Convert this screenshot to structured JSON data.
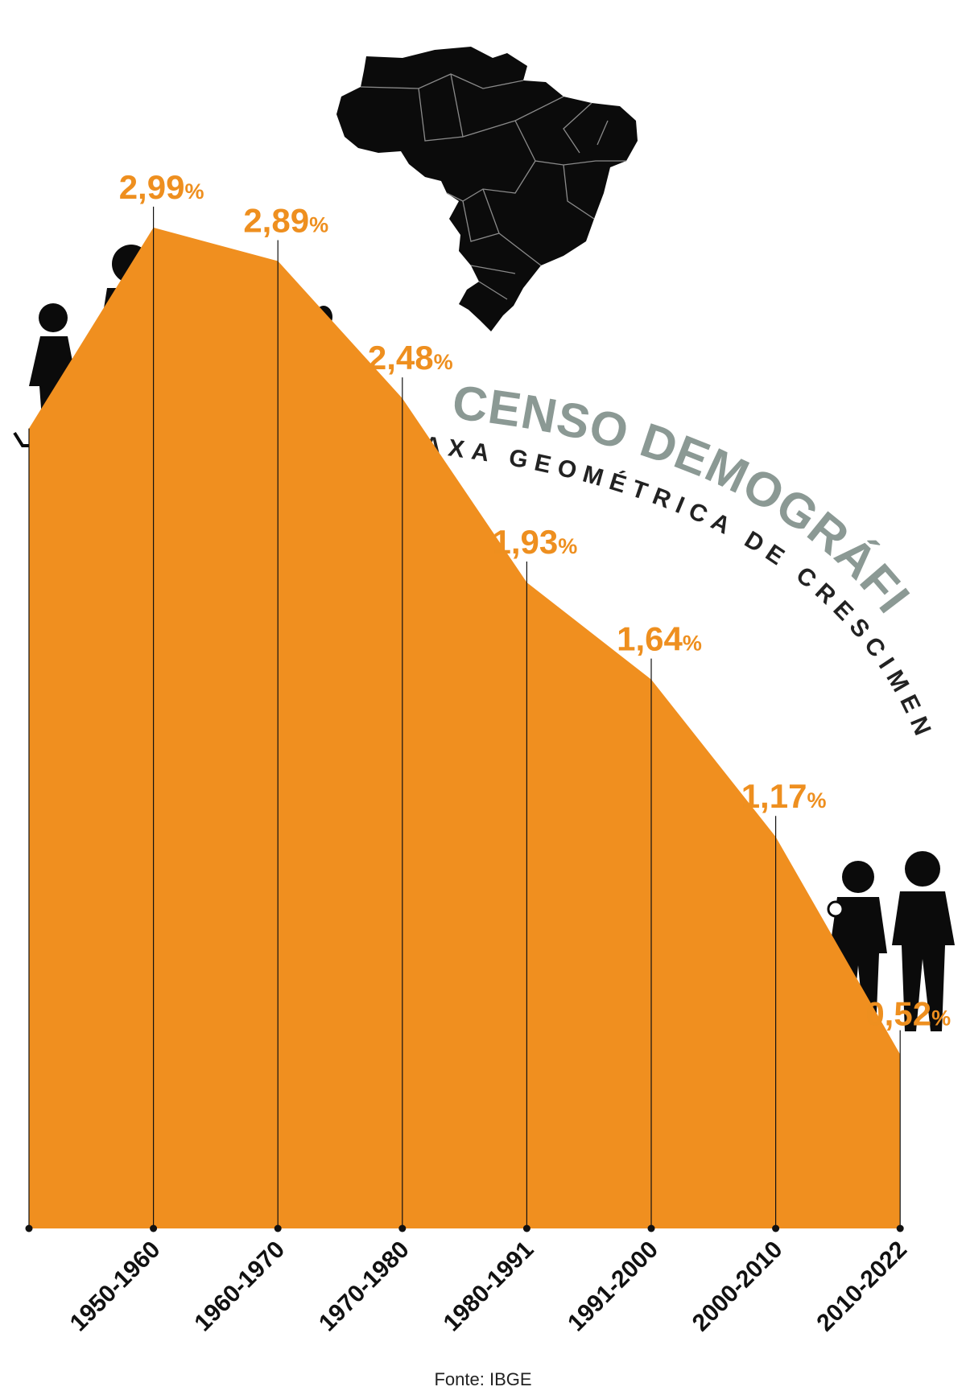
{
  "title": "CENSO DEMOGRÁFICO BRASILEIRO",
  "subtitle": "TAXA GEOMÉTRICA DE CRESCIMENTO ANUAL (%)",
  "source": "Fonte: IBGE",
  "colors": {
    "area": "#f08f1f",
    "label": "#ee8f1f",
    "title": "#8b9994",
    "ink": "#111111"
  },
  "icons": [
    "brazil-map-icon",
    "large-family-icon",
    "small-family-icon"
  ],
  "chart_data": {
    "type": "area",
    "title": "CENSO DEMOGRÁFICO BRASILEIRO",
    "subtitle": "TAXA GEOMÉTRICA DE CRESCIMENTO ANUAL (%)",
    "unit": "%",
    "start_value": 2.39,
    "categories": [
      "1950-1960",
      "1960-1970",
      "1970-1980",
      "1980-1991",
      "1991-2000",
      "2000-2010",
      "2010-2022"
    ],
    "values": [
      2.99,
      2.89,
      2.48,
      1.93,
      1.64,
      1.17,
      0.52
    ],
    "value_labels": [
      "2,99",
      "2,89",
      "2,48",
      "1,93",
      "1,64",
      "1,17",
      "0,52"
    ],
    "ylim": [
      0,
      3.67
    ],
    "grid": false,
    "legend": "none"
  }
}
